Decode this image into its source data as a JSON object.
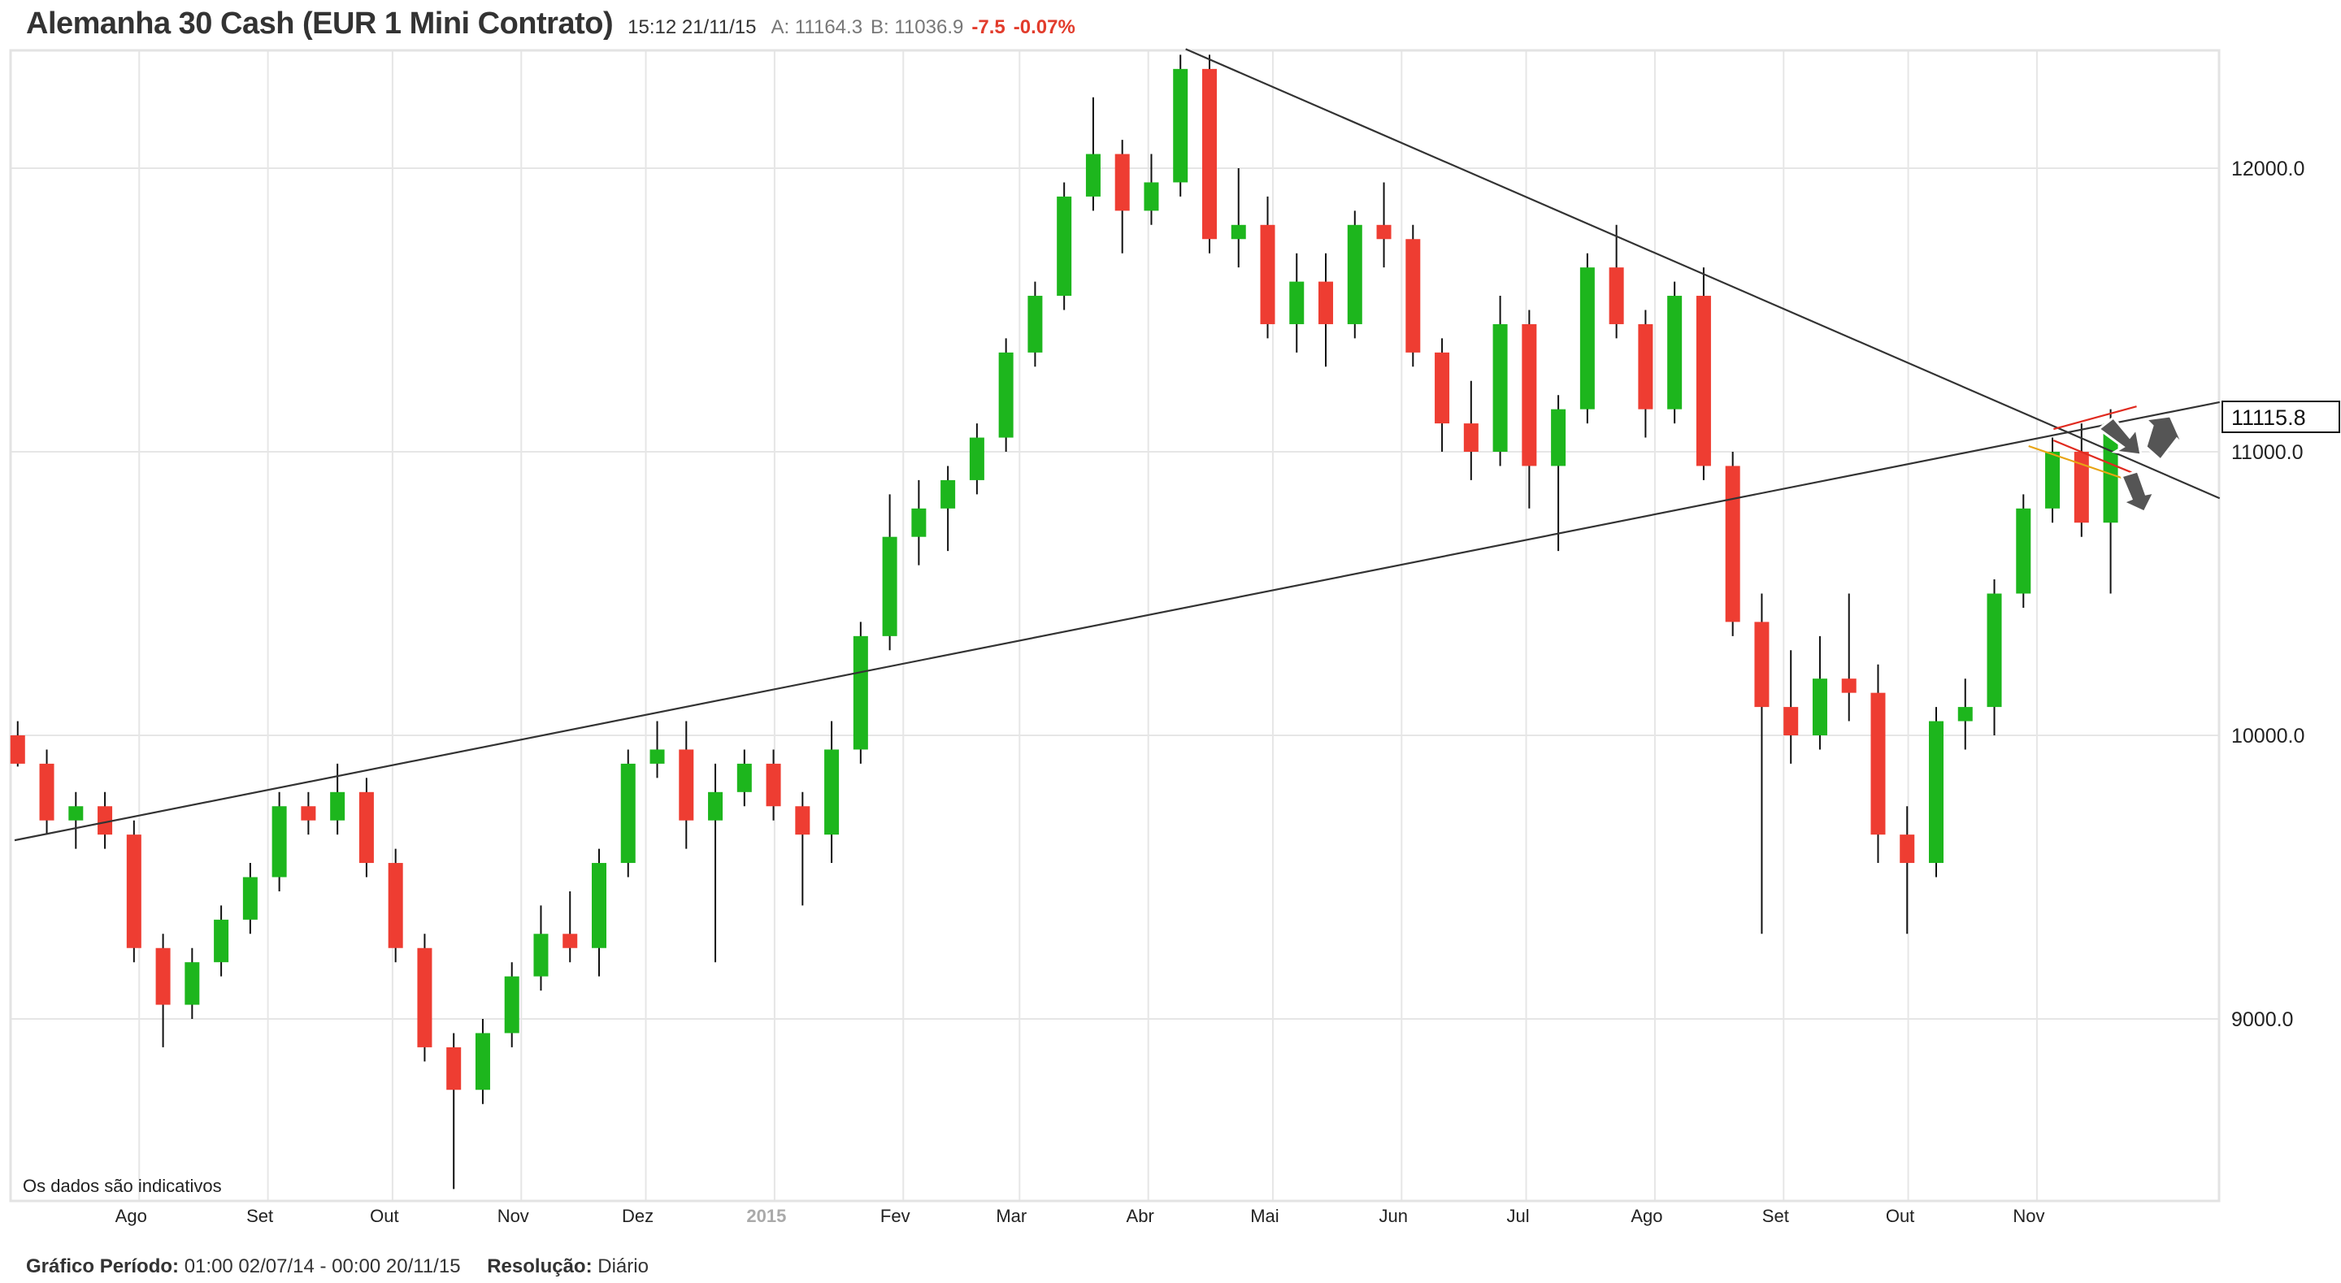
{
  "header": {
    "title": "Alemanha 30 Cash (EUR 1 Mini Contrato)",
    "time": "15:12 21/11/15",
    "ask": "A: 11164.3",
    "bid": "B: 11036.9",
    "change": "-7.5",
    "change_pct": "-0.07%"
  },
  "footer": {
    "period_label": "Gráfico Período:",
    "period_value": "01:00 02/07/14 - 00:00 20/11/15",
    "resolution_label": "Resolução:",
    "resolution_value": "Diário"
  },
  "chart_data": {
    "type": "candlestick",
    "note_text": "Os dados são indicativos",
    "last_price": "11115.8",
    "ylim": [
      8350,
      12550
    ],
    "yticks": [
      "9000.0",
      "10000.0",
      "11000.0",
      "12000.0"
    ],
    "ytick_values": [
      9000,
      10000,
      11000,
      12000
    ],
    "xrange": [
      "2014-07-02",
      "2015-12-15"
    ],
    "xticks": [
      {
        "label": "Ago",
        "date": "2014-08-01"
      },
      {
        "label": "Set",
        "date": "2014-09-01"
      },
      {
        "label": "Out",
        "date": "2014-10-01"
      },
      {
        "label": "Nov",
        "date": "2014-11-01"
      },
      {
        "label": "Dez",
        "date": "2014-12-01"
      },
      {
        "label": "2015",
        "date": "2015-01-01",
        "year": true
      },
      {
        "label": "Fev",
        "date": "2015-02-01"
      },
      {
        "label": "Mar",
        "date": "2015-03-01"
      },
      {
        "label": "Abr",
        "date": "2015-04-01"
      },
      {
        "label": "Mai",
        "date": "2015-05-01"
      },
      {
        "label": "Jun",
        "date": "2015-06-01"
      },
      {
        "label": "Jul",
        "date": "2015-07-01"
      },
      {
        "label": "Ago",
        "date": "2015-08-01"
      },
      {
        "label": "Set",
        "date": "2015-09-01"
      },
      {
        "label": "Out",
        "date": "2015-10-01"
      },
      {
        "label": "Nov",
        "date": "2015-11-01"
      }
    ],
    "colors": {
      "up": "#1db61d",
      "down": "#ee3d32",
      "wick": "#111111",
      "trendline": "#333333",
      "grid": "#e6e6e6"
    },
    "candles": [
      [
        "2014-06-30",
        10000,
        10050,
        9890,
        9900
      ],
      [
        "2014-07-07",
        9900,
        9950,
        9650,
        9700
      ],
      [
        "2014-07-14",
        9700,
        9800,
        9600,
        9750
      ],
      [
        "2014-07-21",
        9750,
        9800,
        9600,
        9650
      ],
      [
        "2014-07-28",
        9650,
        9700,
        9200,
        9250
      ],
      [
        "2014-08-04",
        9250,
        9300,
        8900,
        9050
      ],
      [
        "2014-08-11",
        9050,
        9250,
        9000,
        9200
      ],
      [
        "2014-08-18",
        9200,
        9400,
        9150,
        9350
      ],
      [
        "2014-08-25",
        9350,
        9550,
        9300,
        9500
      ],
      [
        "2014-09-01",
        9500,
        9800,
        9450,
        9750
      ],
      [
        "2014-09-08",
        9750,
        9800,
        9650,
        9700
      ],
      [
        "2014-09-15",
        9700,
        9900,
        9650,
        9800
      ],
      [
        "2014-09-22",
        9800,
        9850,
        9500,
        9550
      ],
      [
        "2014-09-29",
        9550,
        9600,
        9200,
        9250
      ],
      [
        "2014-10-06",
        9250,
        9300,
        8850,
        8900
      ],
      [
        "2014-10-13",
        8900,
        8950,
        8400,
        8750
      ],
      [
        "2014-10-20",
        8750,
        9000,
        8700,
        8950
      ],
      [
        "2014-10-27",
        8950,
        9200,
        8900,
        9150
      ],
      [
        "2014-11-03",
        9150,
        9400,
        9100,
        9300
      ],
      [
        "2014-11-10",
        9300,
        9450,
        9200,
        9250
      ],
      [
        "2014-11-17",
        9250,
        9600,
        9150,
        9550
      ],
      [
        "2014-11-24",
        9550,
        9950,
        9500,
        9900
      ],
      [
        "2014-12-01",
        9900,
        10050,
        9850,
        9950
      ],
      [
        "2014-12-08",
        9950,
        10050,
        9600,
        9700
      ],
      [
        "2014-12-15",
        9700,
        9900,
        9200,
        9800
      ],
      [
        "2014-12-22",
        9800,
        9950,
        9750,
        9900
      ],
      [
        "2014-12-29",
        9900,
        9950,
        9700,
        9750
      ],
      [
        "2015-01-05",
        9750,
        9800,
        9400,
        9650
      ],
      [
        "2015-01-12",
        9650,
        10050,
        9550,
        9950
      ],
      [
        "2015-01-19",
        9950,
        10400,
        9900,
        10350
      ],
      [
        "2015-01-26",
        10350,
        10850,
        10300,
        10700
      ],
      [
        "2015-02-02",
        10700,
        10900,
        10600,
        10800
      ],
      [
        "2015-02-09",
        10800,
        10950,
        10650,
        10900
      ],
      [
        "2015-02-16",
        10900,
        11100,
        10850,
        11050
      ],
      [
        "2015-02-23",
        11050,
        11400,
        11000,
        11350
      ],
      [
        "2015-03-02",
        11350,
        11600,
        11300,
        11550
      ],
      [
        "2015-03-09",
        11550,
        11950,
        11500,
        11900
      ],
      [
        "2015-03-16",
        11900,
        12250,
        11850,
        12050
      ],
      [
        "2015-03-23",
        12050,
        12100,
        11700,
        11850
      ],
      [
        "2015-03-30",
        11850,
        12050,
        11800,
        11950
      ],
      [
        "2015-04-06",
        11950,
        12400,
        11900,
        12350
      ],
      [
        "2015-04-13",
        12350,
        12400,
        11700,
        11750
      ],
      [
        "2015-04-20",
        11750,
        12000,
        11650,
        11800
      ],
      [
        "2015-04-27",
        11800,
        11900,
        11400,
        11450
      ],
      [
        "2015-05-04",
        11450,
        11700,
        11350,
        11600
      ],
      [
        "2015-05-11",
        11600,
        11700,
        11300,
        11450
      ],
      [
        "2015-05-18",
        11450,
        11850,
        11400,
        11800
      ],
      [
        "2015-05-25",
        11800,
        11950,
        11650,
        11750
      ],
      [
        "2015-06-01",
        11750,
        11800,
        11300,
        11350
      ],
      [
        "2015-06-08",
        11350,
        11400,
        11000,
        11100
      ],
      [
        "2015-06-15",
        11100,
        11250,
        10900,
        11000
      ],
      [
        "2015-06-22",
        11000,
        11550,
        10950,
        11450
      ],
      [
        "2015-06-29",
        11450,
        11500,
        10800,
        10950
      ],
      [
        "2015-07-06",
        10950,
        11200,
        10650,
        11150
      ],
      [
        "2015-07-13",
        11150,
        11700,
        11100,
        11650
      ],
      [
        "2015-07-20",
        11650,
        11800,
        11400,
        11450
      ],
      [
        "2015-07-27",
        11450,
        11500,
        11050,
        11150
      ],
      [
        "2015-08-03",
        11150,
        11600,
        11100,
        11550
      ],
      [
        "2015-08-10",
        11550,
        11650,
        10900,
        10950
      ],
      [
        "2015-08-17",
        10950,
        11000,
        10350,
        10400
      ],
      [
        "2015-08-24",
        10400,
        10500,
        9300,
        10100
      ],
      [
        "2015-08-31",
        10100,
        10300,
        9900,
        10000
      ],
      [
        "2015-09-07",
        10000,
        10350,
        9950,
        10200
      ],
      [
        "2015-09-14",
        10200,
        10500,
        10050,
        10150
      ],
      [
        "2015-09-21",
        10150,
        10250,
        9550,
        9650
      ],
      [
        "2015-09-28",
        9650,
        9750,
        9300,
        9550
      ],
      [
        "2015-10-05",
        9550,
        10100,
        9500,
        10050
      ],
      [
        "2015-10-12",
        10050,
        10200,
        9950,
        10100
      ],
      [
        "2015-10-19",
        10100,
        10550,
        10000,
        10500
      ],
      [
        "2015-10-26",
        10500,
        10850,
        10450,
        10800
      ],
      [
        "2015-11-02",
        10800,
        11050,
        10750,
        11000
      ],
      [
        "2015-11-09",
        11000,
        11100,
        10700,
        10750
      ],
      [
        "2015-11-16",
        10750,
        11150,
        10500,
        11100
      ]
    ],
    "trendlines": [
      {
        "color": "#333333",
        "from": [
          "2014-07-02",
          9630
        ],
        "to": [
          "2015-12-15",
          11175
        ]
      },
      {
        "color": "#333333",
        "from": [
          "2015-04-10",
          12420
        ],
        "to": [
          "2015-12-15",
          10836
        ]
      },
      {
        "color": "#e02a1f",
        "from": [
          "2015-11-05",
          11080
        ],
        "to": [
          "2015-11-25",
          11160
        ]
      },
      {
        "color": "#e02a1f",
        "from": [
          "2015-11-05",
          11040
        ],
        "to": [
          "2015-11-25",
          10920
        ]
      },
      {
        "color": "#e8a413",
        "from": [
          "2015-10-30",
          11020
        ],
        "to": [
          "2015-11-25",
          10890
        ]
      }
    ]
  }
}
